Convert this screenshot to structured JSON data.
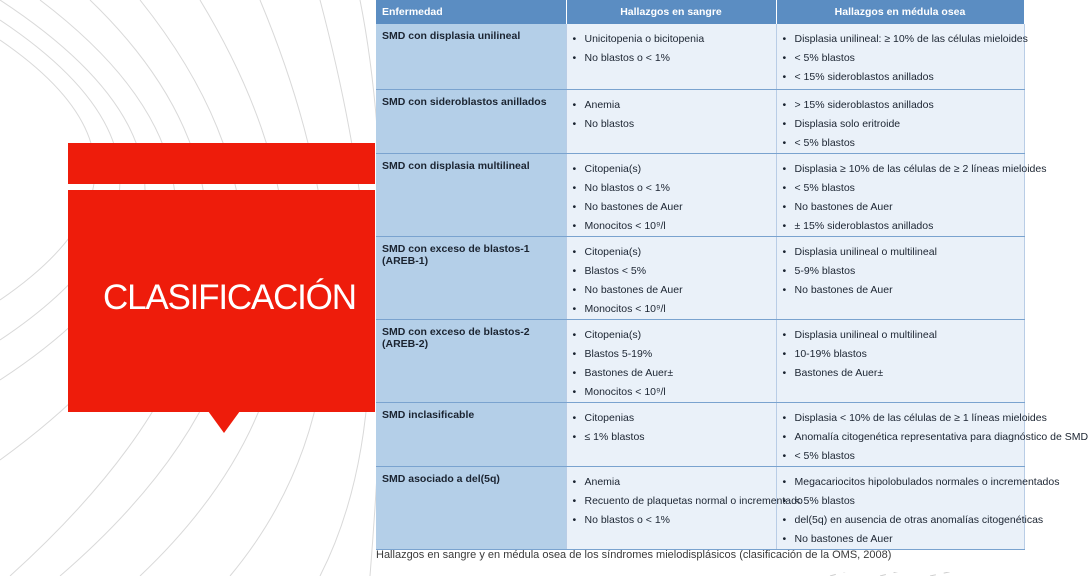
{
  "slide": {
    "title": "CLASIFICACIÓN",
    "accent_color": "#ee1c0b"
  },
  "table": {
    "headers": [
      "Enfermedad",
      "Hallazgos en sangre",
      "Hallazgos en médula osea"
    ],
    "rows": [
      {
        "disease": "SMD con displasia unilineal",
        "blood": [
          "Unicitopenia o bicitopenia",
          "No blastos o < 1%"
        ],
        "marrow": [
          "Displasia unilineal: ≥ 10% de las células mieloides",
          "< 5% blastos",
          "< 15% sideroblastos anillados"
        ]
      },
      {
        "disease": "SMD con sideroblastos anillados",
        "blood": [
          "Anemia",
          "No blastos"
        ],
        "marrow": [
          "> 15% sideroblastos anillados",
          "Displasia solo eritroide",
          "< 5% blastos"
        ]
      },
      {
        "disease": "SMD con displasia multilineal",
        "blood": [
          "Citopenia(s)",
          "No blastos o < 1%",
          "No bastones de Auer",
          "Monocitos < 10⁹/l"
        ],
        "marrow": [
          "Displasia ≥ 10% de las células de ≥ 2 líneas mieloides",
          "< 5% blastos",
          "No bastones de Auer",
          "± 15% sideroblastos anillados"
        ]
      },
      {
        "disease": "SMD con exceso de blastos-1 (AREB-1)",
        "blood": [
          "Citopenia(s)",
          "Blastos < 5%",
          "No bastones de Auer",
          "Monocitos < 10⁹/l"
        ],
        "marrow": [
          "Displasia unilineal o multilineal",
          "5-9% blastos",
          "No bastones de Auer"
        ]
      },
      {
        "disease": "SMD con exceso de blastos-2 (AREB-2)",
        "blood": [
          "Citopenia(s)",
          "Blastos 5-19%",
          "Bastones de Auer±",
          "Monocitos < 10⁹/l"
        ],
        "marrow": [
          "Displasia unilineal o multilineal",
          "10-19% blastos",
          "Bastones de Auer±"
        ]
      },
      {
        "disease": "SMD inclasificable",
        "blood": [
          "Citopenias",
          "≤ 1% blastos"
        ],
        "marrow": [
          "Displasia < 10% de las células de ≥ 1 líneas mieloides",
          "Anomalía citogenética representativa para diagnóstico de SMD",
          "< 5% blastos"
        ]
      },
      {
        "disease": "SMD asociado a del(5q)",
        "blood": [
          "Anemia",
          "Recuento de plaquetas normal o incrementado",
          "No blastos o < 1%"
        ],
        "marrow": [
          "Megacariocitos hipolobulados normales o incrementados",
          "< 5% blastos",
          "del(5q) en ausencia de otras anomalías citogenéticas",
          "No bastones de Auer"
        ]
      }
    ],
    "caption": "Hallazgos en sangre y en médula osea de los síndromes mielodisplásicos (clasificación de la OMS, 2008)"
  }
}
